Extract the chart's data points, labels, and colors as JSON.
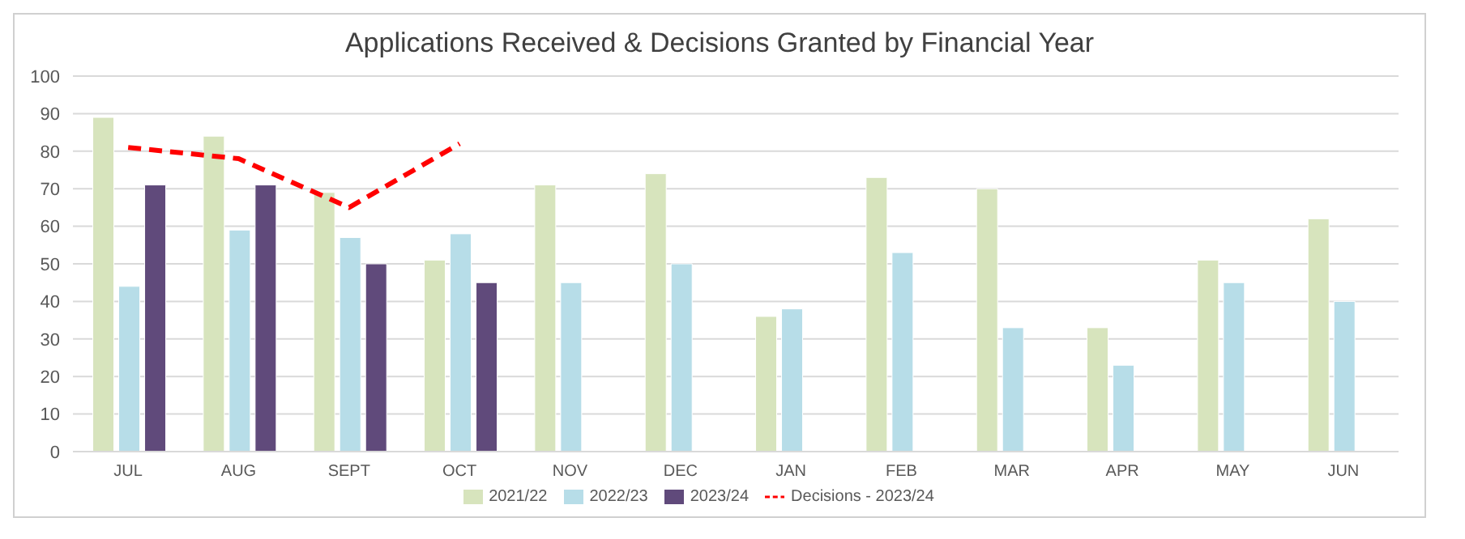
{
  "chart_data": {
    "type": "bar",
    "title": "Applications Received & Decisions Granted by Financial Year",
    "categories": [
      "JUL",
      "AUG",
      "SEPT",
      "OCT",
      "NOV",
      "DEC",
      "JAN",
      "FEB",
      "MAR",
      "APR",
      "MAY",
      "JUN"
    ],
    "series": [
      {
        "name": "2021/22",
        "color": "#d7e4bd",
        "values": [
          89,
          84,
          69,
          51,
          71,
          74,
          36,
          73,
          70,
          33,
          51,
          62
        ]
      },
      {
        "name": "2022/23",
        "color": "#b7dde8",
        "values": [
          44,
          59,
          57,
          58,
          45,
          50,
          38,
          53,
          33,
          23,
          45,
          40
        ]
      },
      {
        "name": "2023/24",
        "color": "#604a7b",
        "values": [
          71,
          71,
          50,
          45,
          null,
          null,
          null,
          null,
          null,
          null,
          null,
          null
        ]
      },
      {
        "name": "Decisions - 2023/24",
        "type": "line",
        "color": "#ff0000",
        "line_style": "dashed",
        "marker": "none",
        "values": [
          81,
          78,
          65,
          82,
          null,
          null,
          null,
          null,
          null,
          null,
          null,
          null
        ]
      }
    ],
    "ylim": [
      0,
      100
    ],
    "yticks": [
      0,
      10,
      20,
      30,
      40,
      50,
      60,
      70,
      80,
      90,
      100
    ],
    "grid": "y",
    "legend": "bottom"
  }
}
